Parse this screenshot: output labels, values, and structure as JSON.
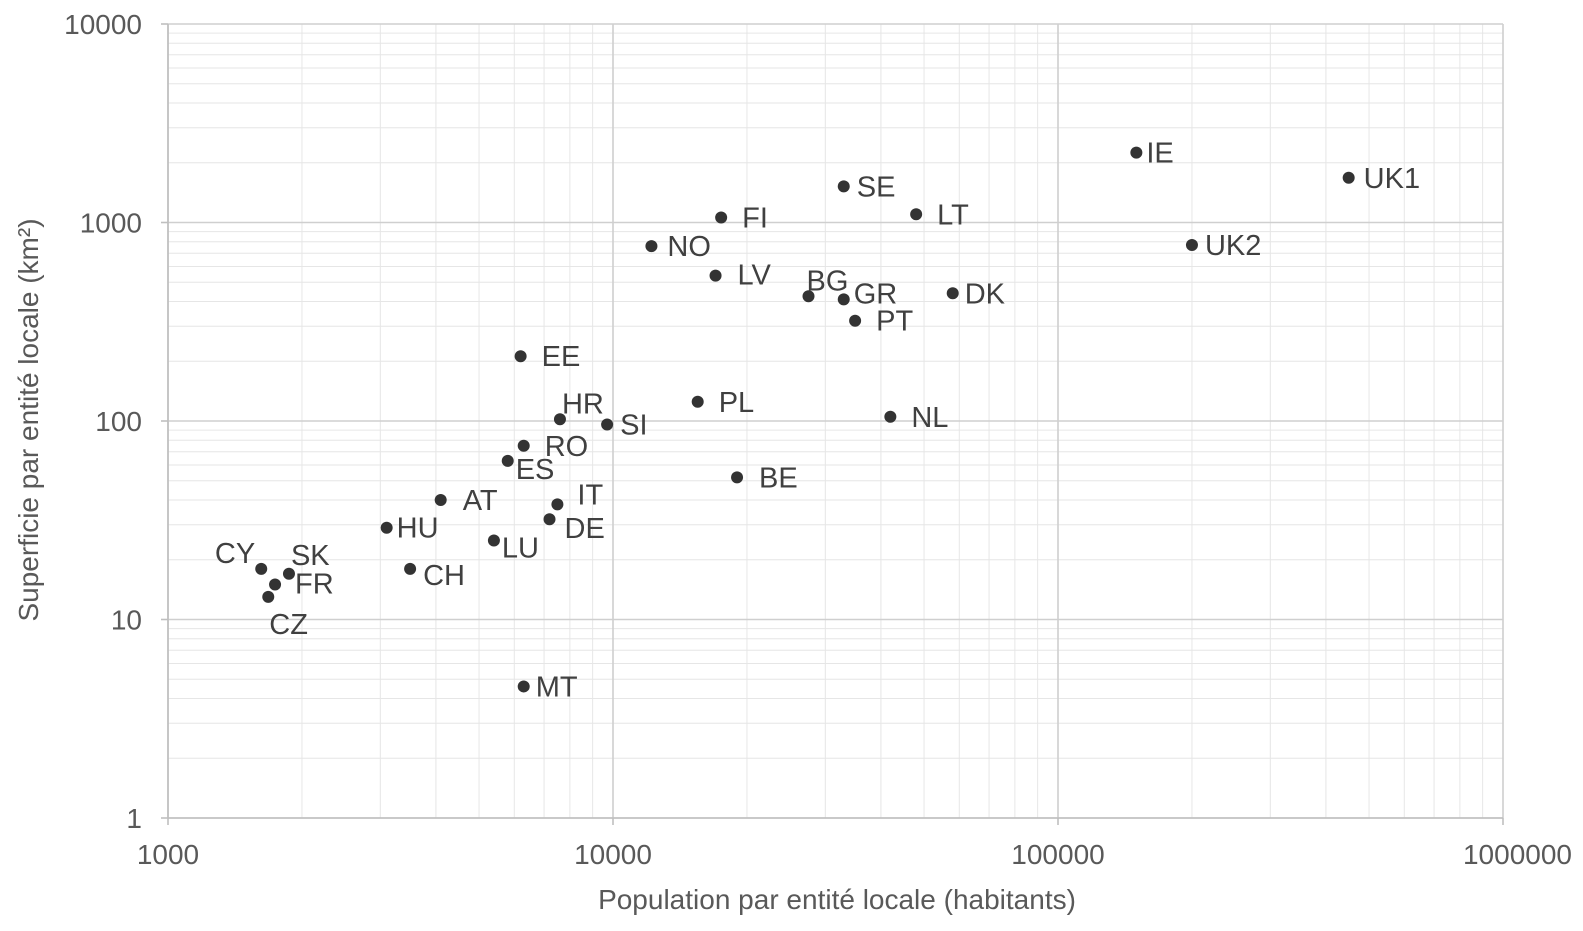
{
  "chart_data": {
    "type": "scatter",
    "title": "",
    "xlabel": "Population par entité locale (habitants)",
    "ylabel": "Superficie par entité locale (km²)",
    "x_scale": "log",
    "y_scale": "log",
    "xlim": [
      1000,
      1000000
    ],
    "ylim": [
      1,
      10000
    ],
    "x_ticks": [
      "1000",
      "10000",
      "100000",
      "1000000"
    ],
    "y_ticks": [
      "1",
      "10",
      "100",
      "1000",
      "10000"
    ],
    "grid": true,
    "legend": "none",
    "marker_color": "#333333",
    "points": [
      {
        "label": "IE",
        "x": 150000,
        "y": 2250
      },
      {
        "label": "UK1",
        "x": 450000,
        "y": 1680
      },
      {
        "label": "UK2",
        "x": 200000,
        "y": 770
      },
      {
        "label": "SE",
        "x": 33000,
        "y": 1520
      },
      {
        "label": "LT",
        "x": 48000,
        "y": 1100
      },
      {
        "label": "FI",
        "x": 17500,
        "y": 1060
      },
      {
        "label": "NO",
        "x": 12200,
        "y": 760
      },
      {
        "label": "LV",
        "x": 17000,
        "y": 540
      },
      {
        "label": "BG",
        "x": 27500,
        "y": 425
      },
      {
        "label": "GR",
        "x": 33000,
        "y": 410
      },
      {
        "label": "DK",
        "x": 58000,
        "y": 440
      },
      {
        "label": "PT",
        "x": 35000,
        "y": 320
      },
      {
        "label": "EE",
        "x": 6200,
        "y": 212
      },
      {
        "label": "PL",
        "x": 15500,
        "y": 125
      },
      {
        "label": "NL",
        "x": 42000,
        "y": 105
      },
      {
        "label": "HR",
        "x": 7600,
        "y": 102
      },
      {
        "label": "SI",
        "x": 9700,
        "y": 96
      },
      {
        "label": "RO",
        "x": 6300,
        "y": 75
      },
      {
        "label": "ES",
        "x": 5800,
        "y": 63
      },
      {
        "label": "BE",
        "x": 19000,
        "y": 52
      },
      {
        "label": "AT",
        "x": 4100,
        "y": 40
      },
      {
        "label": "IT",
        "x": 7500,
        "y": 38
      },
      {
        "label": "DE",
        "x": 7200,
        "y": 32
      },
      {
        "label": "HU",
        "x": 3100,
        "y": 29
      },
      {
        "label": "LU",
        "x": 5400,
        "y": 25
      },
      {
        "label": "CH",
        "x": 3500,
        "y": 18
      },
      {
        "label": "CY",
        "x": 1620,
        "y": 18
      },
      {
        "label": "SK",
        "x": 1870,
        "y": 17
      },
      {
        "label": "FR",
        "x": 1740,
        "y": 15
      },
      {
        "label": "CZ",
        "x": 1680,
        "y": 13
      },
      {
        "label": "MT",
        "x": 6300,
        "y": 4.6
      }
    ]
  }
}
